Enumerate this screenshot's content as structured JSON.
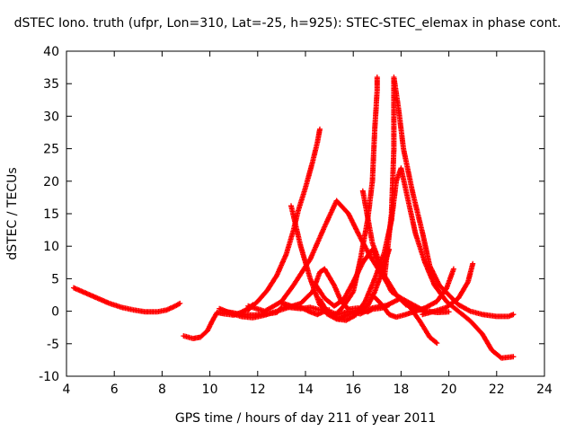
{
  "chart_data": {
    "type": "scatter",
    "title": "dSTEC Iono. truth (ufpr, Lon=310, Lat=-25, h=925): STEC-STEC_elemax in phase cont.",
    "xlabel": "GPS time / hours of day 211 of year 2011",
    "ylabel": "dSTEC  / TECUs",
    "xlim": [
      4,
      24
    ],
    "ylim": [
      -10,
      40
    ],
    "xticks": [
      "4",
      "6",
      "8",
      "10",
      "12",
      "14",
      "16",
      "18",
      "20",
      "22",
      "24"
    ],
    "yticks": [
      "-10",
      "-5",
      "0",
      "5",
      "10",
      "15",
      "20",
      "25",
      "30",
      "35",
      "40"
    ],
    "grid": false,
    "legend": "none",
    "marker": "plus",
    "color": "#ff0000",
    "series": [
      {
        "points": [
          [
            4.3,
            3.6
          ],
          [
            4.8,
            2.8
          ],
          [
            5.3,
            2.0
          ],
          [
            5.8,
            1.2
          ],
          [
            6.3,
            0.6
          ],
          [
            6.8,
            0.2
          ],
          [
            7.3,
            -0.1
          ],
          [
            7.8,
            -0.1
          ],
          [
            8.2,
            0.2
          ],
          [
            8.5,
            0.7
          ],
          [
            8.75,
            1.2
          ]
        ]
      },
      {
        "points": [
          [
            8.9,
            -3.8
          ],
          [
            9.3,
            -4.2
          ],
          [
            9.6,
            -4.0
          ],
          [
            9.9,
            -3.0
          ],
          [
            10.1,
            -1.5
          ],
          [
            10.3,
            -0.2
          ],
          [
            10.6,
            -0.4
          ],
          [
            11.0,
            -0.6
          ],
          [
            11.3,
            -0.2
          ],
          [
            11.6,
            0.4
          ],
          [
            11.8,
            1.0
          ]
        ]
      },
      {
        "points": [
          [
            10.4,
            0.4
          ],
          [
            10.8,
            -0.2
          ],
          [
            11.3,
            -0.8
          ],
          [
            11.8,
            -1.0
          ],
          [
            12.3,
            -0.6
          ],
          [
            12.8,
            0.0
          ],
          [
            13.3,
            0.6
          ],
          [
            13.8,
            0.4
          ],
          [
            14.2,
            0.6
          ],
          [
            14.6,
            0.2
          ],
          [
            15.0,
            0.2
          ]
        ]
      },
      {
        "points": [
          [
            11.6,
            0.2
          ],
          [
            12.0,
            1.5
          ],
          [
            12.4,
            3.2
          ],
          [
            12.8,
            5.5
          ],
          [
            13.2,
            8.8
          ],
          [
            13.5,
            12.5
          ],
          [
            13.7,
            15.5
          ],
          [
            14.0,
            19.0
          ],
          [
            14.3,
            23.0
          ],
          [
            14.5,
            26.0
          ],
          [
            14.6,
            28.0
          ]
        ]
      },
      {
        "points": [
          [
            10.6,
            0.0
          ],
          [
            11.2,
            -0.4
          ],
          [
            11.8,
            -0.6
          ],
          [
            12.4,
            -0.4
          ],
          [
            12.8,
            -0.2
          ],
          [
            13.0,
            0.6
          ],
          [
            13.3,
            0.6
          ],
          [
            13.8,
            1.2
          ],
          [
            14.3,
            3.0
          ],
          [
            14.6,
            6.0
          ],
          [
            14.8,
            6.5
          ],
          [
            15.2,
            4.0
          ],
          [
            15.5,
            1.5
          ],
          [
            15.8,
            0.3
          ],
          [
            16.2,
            0.5
          ],
          [
            16.6,
            -0.1
          ],
          [
            16.8,
            0.3
          ],
          [
            17.2,
            0.5
          ],
          [
            17.5,
            1.0
          ]
        ]
      },
      {
        "points": [
          [
            13.4,
            16.2
          ],
          [
            13.8,
            10.0
          ],
          [
            14.2,
            5.0
          ],
          [
            14.6,
            1.0
          ],
          [
            15.0,
            -0.3
          ],
          [
            15.3,
            -0.6
          ],
          [
            15.8,
            0.0
          ],
          [
            16.3,
            -0.4
          ],
          [
            16.8,
            0.5
          ],
          [
            17.4,
            0.9
          ],
          [
            18.0,
            2.0
          ]
        ]
      },
      {
        "points": [
          [
            11.6,
            0.8
          ],
          [
            12.3,
            0.0
          ],
          [
            13.0,
            1.5
          ],
          [
            13.5,
            4.0
          ],
          [
            14.2,
            8.0
          ],
          [
            14.8,
            13.0
          ],
          [
            15.3,
            17.0
          ],
          [
            15.8,
            15.0
          ],
          [
            16.2,
            12.0
          ],
          [
            16.7,
            8.5
          ],
          [
            17.3,
            5.0
          ],
          [
            17.8,
            2.5
          ],
          [
            18.4,
            0.5
          ],
          [
            18.8,
            -1.6
          ],
          [
            19.2,
            -4.0
          ],
          [
            19.5,
            -4.9
          ]
        ]
      },
      {
        "points": [
          [
            16.4,
            18.5
          ],
          [
            16.8,
            10.5
          ],
          [
            17.3,
            5.5
          ],
          [
            17.8,
            2.5
          ],
          [
            18.2,
            1.0
          ],
          [
            18.8,
            0.2
          ],
          [
            19.5,
            -0.2
          ],
          [
            20.0,
            -0.1
          ]
        ]
      },
      {
        "points": [
          [
            14.6,
            1.2
          ],
          [
            14.9,
            -0.4
          ],
          [
            15.3,
            -1.2
          ],
          [
            15.7,
            -1.4
          ],
          [
            16.1,
            -0.6
          ],
          [
            16.5,
            1.5
          ],
          [
            16.9,
            5.0
          ],
          [
            17.3,
            9.0
          ],
          [
            17.6,
            14.0
          ],
          [
            17.8,
            20.0
          ],
          [
            18.0,
            22.0
          ],
          [
            18.3,
            17.0
          ],
          [
            18.6,
            12.0
          ],
          [
            19.0,
            7.5
          ],
          [
            19.4,
            4.0
          ],
          [
            19.9,
            1.5
          ],
          [
            20.4,
            0.0
          ],
          [
            20.9,
            -1.5
          ],
          [
            21.4,
            -3.5
          ],
          [
            21.8,
            -6.0
          ],
          [
            22.2,
            -7.2
          ],
          [
            22.7,
            -7.0
          ]
        ]
      },
      {
        "points": [
          [
            14.6,
            1.8
          ],
          [
            14.9,
            0.0
          ],
          [
            15.3,
            -0.4
          ],
          [
            15.6,
            0.8
          ],
          [
            16.0,
            3.0
          ],
          [
            16.3,
            8.0
          ],
          [
            16.6,
            14.0
          ],
          [
            16.8,
            20.0
          ],
          [
            16.9,
            28.0
          ],
          [
            17.0,
            34.0
          ],
          [
            17.0,
            36.0
          ]
        ]
      },
      {
        "points": [
          [
            14.4,
            4.2
          ],
          [
            14.8,
            2.0
          ],
          [
            15.2,
            0.8
          ],
          [
            15.6,
            1.8
          ],
          [
            16.0,
            4.5
          ],
          [
            16.4,
            7.5
          ],
          [
            16.8,
            9.5
          ],
          [
            17.2,
            6.0
          ],
          [
            17.6,
            3.0
          ],
          [
            18.0,
            2.0
          ],
          [
            18.5,
            1.0
          ],
          [
            19.0,
            0.0
          ]
        ]
      },
      {
        "points": [
          [
            17.3,
            5.0
          ],
          [
            17.6,
            15.0
          ],
          [
            17.7,
            25.0
          ],
          [
            17.7,
            36.0
          ],
          [
            17.9,
            31.0
          ],
          [
            18.1,
            25.0
          ],
          [
            18.5,
            18.0
          ],
          [
            18.9,
            12.0
          ],
          [
            19.2,
            7.0
          ],
          [
            19.6,
            4.0
          ],
          [
            20.0,
            2.5
          ],
          [
            20.4,
            1.0
          ],
          [
            20.9,
            0.0
          ],
          [
            21.4,
            -0.5
          ],
          [
            22.0,
            -0.8
          ],
          [
            22.5,
            -0.8
          ],
          [
            22.7,
            -0.5
          ]
        ]
      },
      {
        "points": [
          [
            17.5,
            9.5
          ],
          [
            17.2,
            6.0
          ],
          [
            16.9,
            3.0
          ],
          [
            16.6,
            0.8
          ],
          [
            16.2,
            0.0
          ],
          [
            15.8,
            -0.5
          ],
          [
            15.4,
            -1.2
          ],
          [
            15.1,
            -0.6
          ],
          [
            14.8,
            0.0
          ],
          [
            14.5,
            -0.5
          ],
          [
            14.2,
            -0.1
          ],
          [
            13.8,
            0.6
          ],
          [
            13.4,
            0.8
          ],
          [
            13.0,
            1.3
          ]
        ]
      },
      {
        "points": [
          [
            16.8,
            2.5
          ],
          [
            17.2,
            1.0
          ],
          [
            17.5,
            -0.5
          ],
          [
            17.8,
            -0.9
          ],
          [
            18.2,
            -0.5
          ],
          [
            18.6,
            0.0
          ],
          [
            19.0,
            0.5
          ],
          [
            19.5,
            1.5
          ],
          [
            19.9,
            3.5
          ],
          [
            20.2,
            6.5
          ]
        ]
      },
      {
        "points": [
          [
            18.9,
            -0.5
          ],
          [
            19.4,
            0.0
          ],
          [
            19.9,
            0.6
          ],
          [
            20.4,
            2.0
          ],
          [
            20.8,
            4.5
          ],
          [
            21.0,
            7.3
          ]
        ]
      }
    ]
  }
}
